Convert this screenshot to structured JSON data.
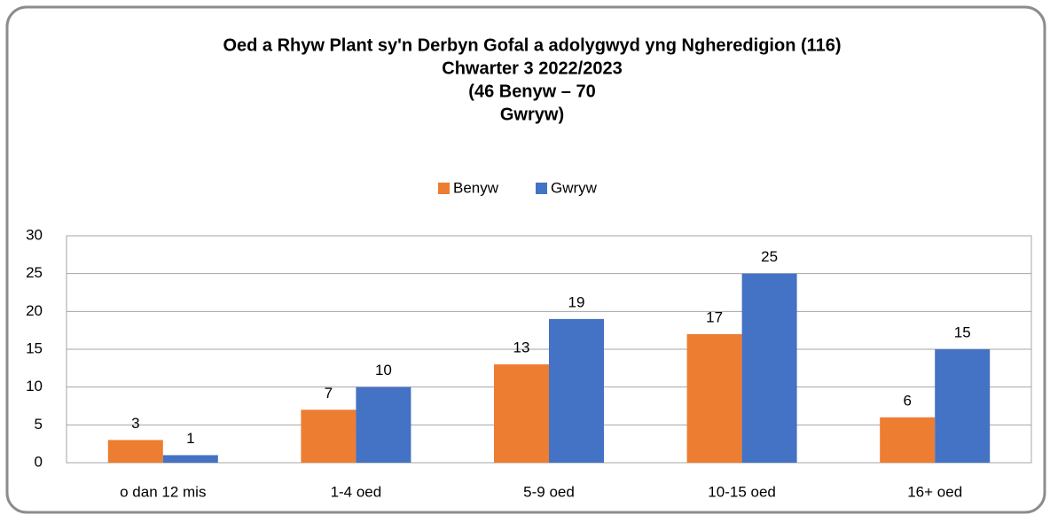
{
  "chart_data": {
    "type": "bar",
    "title": [
      "Oed a Rhyw Plant sy'n Derbyn Gofal a adolygwyd yng Ngheredigion (116)",
      "Chwarter 3  2022/2023",
      "(46 Benyw – 70",
      "Gwryw)"
    ],
    "categories": [
      "o dan 12 mis",
      "1-4 oed",
      "5-9 oed",
      "10-15 oed",
      "16+ oed"
    ],
    "series": [
      {
        "name": "Benyw",
        "color": "#ed7d31",
        "values": [
          3,
          7,
          13,
          17,
          6
        ]
      },
      {
        "name": "Gwryw",
        "color": "#4472c4",
        "values": [
          1,
          10,
          19,
          25,
          15
        ]
      }
    ],
    "ylim": [
      0,
      30
    ],
    "yticks": [
      0,
      5,
      10,
      15,
      20,
      25,
      30
    ],
    "grid": true,
    "legend": "top"
  }
}
